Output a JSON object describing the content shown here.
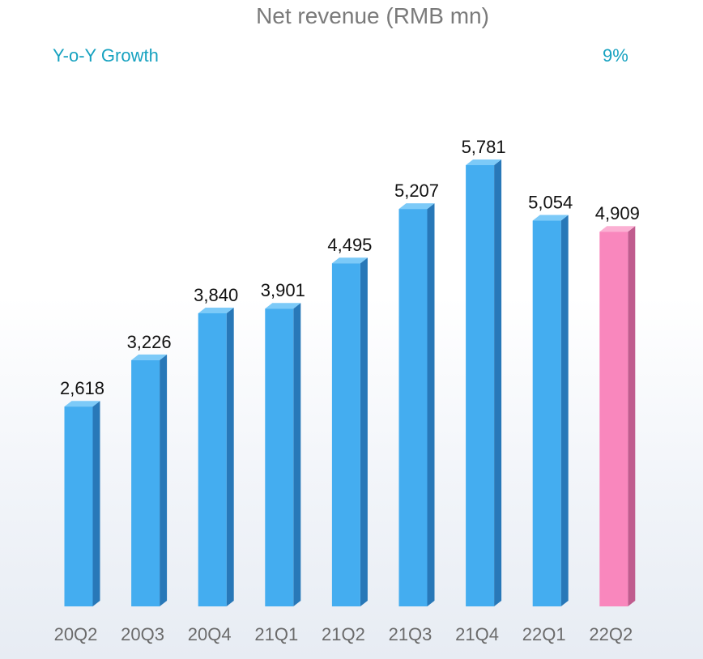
{
  "chart_data": {
    "type": "bar",
    "title": "Net revenue (RMB mn)",
    "categories": [
      "20Q2",
      "20Q3",
      "20Q4",
      "21Q1",
      "21Q2",
      "21Q3",
      "21Q4",
      "22Q1",
      "22Q2"
    ],
    "values": [
      2618,
      3226,
      3840,
      3901,
      4495,
      5207,
      5781,
      5054,
      4909
    ],
    "value_labels": [
      "2,618",
      "3,226",
      "3,840",
      "3,901",
      "4,495",
      "5,207",
      "5,781",
      "5,054",
      "4,909"
    ],
    "highlight_index": 8,
    "ylim": [
      0,
      5781
    ],
    "grid": false,
    "annotation": {
      "label": "Y-o-Y Growth",
      "value": "9%"
    },
    "colors": {
      "bar": "#44adf0",
      "bar_side": "#2878b8",
      "bar_top": "#7ccaf8",
      "highlight": "#f987bd",
      "highlight_side": "#c05c8e",
      "highlight_top": "#fbb0d3",
      "annotation": "#17a2c0"
    }
  }
}
